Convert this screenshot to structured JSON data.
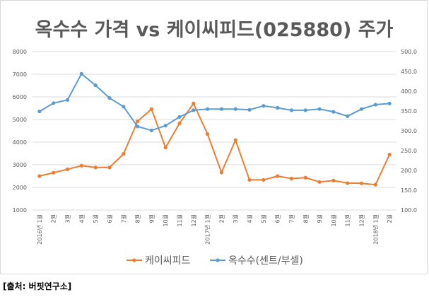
{
  "chart_data": {
    "type": "line",
    "title": "옥수수 가격 vs 케이씨피드(025880) 주가",
    "categories": [
      "2016년 1월",
      "2월",
      "3월",
      "4월",
      "5월",
      "6월",
      "7월",
      "8월",
      "9월",
      "10월",
      "11월",
      "12월",
      "2017년 1월",
      "2월",
      "3월",
      "4월",
      "5월",
      "6월",
      "7월",
      "8월",
      "9월",
      "10월",
      "11월",
      "12월",
      "2018년 1월",
      "2월"
    ],
    "series": [
      {
        "name": "케이씨피드",
        "axis": "left",
        "color": "#ed7d31",
        "values": [
          2500,
          2650,
          2800,
          2960,
          2880,
          2880,
          3480,
          4920,
          5460,
          3760,
          4830,
          5710,
          4360,
          2660,
          4090,
          2330,
          2330,
          2500,
          2390,
          2430,
          2240,
          2300,
          2190,
          2180,
          2120,
          3450
        ]
      },
      {
        "name": "옥수수(센트/부셀)",
        "axis": "right",
        "color": "#5b9bd5",
        "values": [
          349,
          370,
          378,
          444,
          415,
          383,
          361,
          311,
          301,
          313,
          335,
          352,
          355,
          355,
          355,
          353,
          363,
          358,
          352,
          352,
          355,
          348,
          337,
          355,
          366,
          369
        ]
      }
    ],
    "y_left": {
      "min": 1000,
      "max": 8000,
      "step": 1000,
      "ticks": [
        "1000",
        "2000",
        "3000",
        "4000",
        "5000",
        "6000",
        "7000",
        "8000"
      ]
    },
    "y_right": {
      "min": 100,
      "max": 500,
      "step": 50,
      "ticks": [
        "100.0",
        "150.0",
        "200.0",
        "250.0",
        "300.0",
        "350.0",
        "400.0",
        "450.0",
        "500.0"
      ]
    },
    "grid": "horizontal",
    "legend_position": "bottom"
  },
  "source": "[출처: 버핏연구소]"
}
